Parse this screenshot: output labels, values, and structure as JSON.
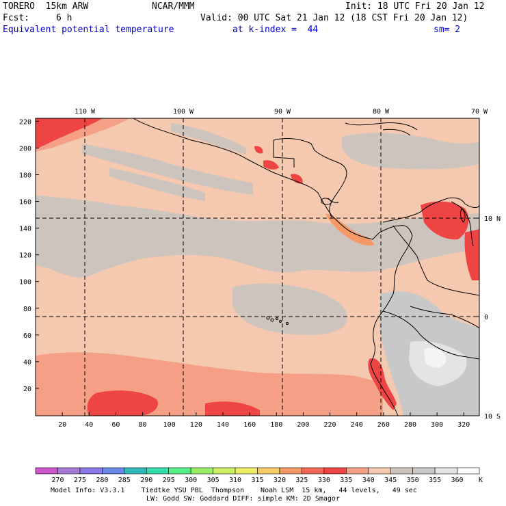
{
  "header": {
    "model": "TORERO  15km ARW",
    "center": "NCAR/MMM",
    "init": "Init: 18 UTC Fri 20 Jan 12",
    "fcst_label": "Fcst:",
    "fcst_value": "6 h",
    "valid": "Valid: 00 UTC Sat 21 Jan 12 (18 CST Fri 20 Jan 12)",
    "field": "Equivalent potential temperature",
    "level": "at k-index =  44",
    "smooth": "sm= 2"
  },
  "top_lon_labels": [
    "110 W",
    "100 W",
    "90 W",
    "80 W",
    "70 W"
  ],
  "right_lat_labels": [
    "10 N",
    "0",
    "10 S"
  ],
  "y_ticks": [
    "20",
    "40",
    "60",
    "80",
    "100",
    "120",
    "140",
    "160",
    "180",
    "200",
    "220"
  ],
  "x_ticks": [
    "20",
    "40",
    "60",
    "80",
    "100",
    "120",
    "140",
    "160",
    "180",
    "200",
    "220",
    "240",
    "260",
    "280",
    "300",
    "320"
  ],
  "colorbar": {
    "labels": [
      "270",
      "275",
      "280",
      "285",
      "290",
      "295",
      "300",
      "305",
      "310",
      "315",
      "320",
      "325",
      "330",
      "335",
      "340",
      "345",
      "350",
      "355",
      "360"
    ],
    "unit": "K",
    "colors": [
      "#cc55cc",
      "#a77ad8",
      "#8878e8",
      "#6a88e6",
      "#33bbbb",
      "#33ddaa",
      "#55ee88",
      "#99ee66",
      "#ccee66",
      "#eeee66",
      "#f5cc66",
      "#f59966",
      "#f56655",
      "#ee4444",
      "#f59f86",
      "#f5c9b0",
      "#cdc4bd",
      "#c8c8c8",
      "#e4e4e4",
      "#ffffff"
    ]
  },
  "footer": {
    "line1": "Model Info: V3.3.1    Tiedtke YSU PBL  Thompson    Noah LSM  15 km,   44 levels,   49 sec",
    "line2": "LW: Godd SW: Goddard DIFF: simple KM: 2D Smagor"
  }
}
